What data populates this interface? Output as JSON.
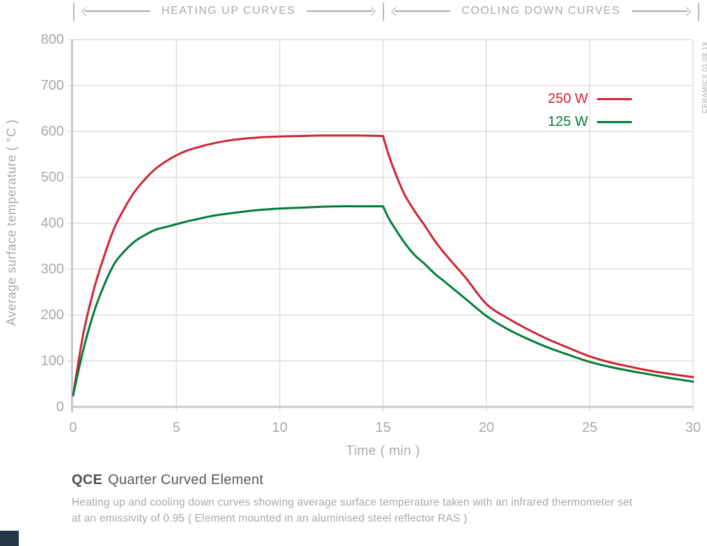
{
  "header": {
    "heating_label": "HEATING UP CURVES",
    "cooling_label": "COOLING DOWN CURVES"
  },
  "watermark": "CERAMICX 01.08.19",
  "legend": [
    {
      "label": "250 W",
      "color": "#cf2533"
    },
    {
      "label": "125 W",
      "color": "#007d37"
    }
  ],
  "colors": {
    "red_series": "#cf2533",
    "green_series": "#007d37",
    "grid": "#dedede",
    "axis": "#c8c9ca",
    "tick_text": "#a7a9ac",
    "corner_mark": "#253746"
  },
  "chart_data": {
    "type": "line",
    "title": "QCE Quarter Curved Element — heating up and cooling down curves",
    "xlabel": "Time ( min )",
    "ylabel": "Average surface temperature ( °C )",
    "xlim": [
      0,
      30
    ],
    "ylim": [
      0,
      800
    ],
    "xticks": [
      0,
      5,
      10,
      15,
      20,
      25,
      30
    ],
    "yticks": [
      0,
      100,
      200,
      300,
      400,
      500,
      600,
      700,
      800
    ],
    "grid": true,
    "legend_position": "upper right inside",
    "annotations": [
      "HEATING UP CURVES (0–15 min)",
      "COOLING DOWN CURVES (15–30 min)"
    ],
    "series": [
      {
        "name": "250 W",
        "color": "#cf2533",
        "heat": [
          [
            0,
            25
          ],
          [
            0.5,
            160
          ],
          [
            1,
            255
          ],
          [
            1.5,
            328
          ],
          [
            2,
            390
          ],
          [
            2.5,
            434
          ],
          [
            3,
            470
          ],
          [
            3.5,
            497
          ],
          [
            4,
            519
          ],
          [
            4.5,
            535
          ],
          [
            5,
            548
          ],
          [
            5.5,
            558
          ],
          [
            6,
            565
          ],
          [
            6.5,
            571
          ],
          [
            7,
            576
          ],
          [
            7.5,
            580
          ],
          [
            8,
            583
          ],
          [
            9,
            587
          ],
          [
            10,
            589
          ],
          [
            11,
            590
          ],
          [
            12,
            591
          ],
          [
            13,
            591
          ],
          [
            14,
            591
          ],
          [
            15,
            590
          ]
        ],
        "cool": [
          [
            15,
            590
          ],
          [
            15.25,
            552
          ],
          [
            15.5,
            520
          ],
          [
            16,
            466
          ],
          [
            16.5,
            428
          ],
          [
            17,
            396
          ],
          [
            17.5,
            362
          ],
          [
            18,
            333
          ],
          [
            19,
            281
          ],
          [
            20,
            224
          ],
          [
            21,
            194
          ],
          [
            22,
            169
          ],
          [
            23,
            147
          ],
          [
            24,
            128
          ],
          [
            25,
            110
          ],
          [
            26,
            97
          ],
          [
            27,
            87
          ],
          [
            28,
            78
          ],
          [
            29,
            71
          ],
          [
            30,
            65
          ]
        ]
      },
      {
        "name": "125 W",
        "color": "#007d37",
        "heat": [
          [
            0,
            25
          ],
          [
            0.5,
            125
          ],
          [
            1,
            205
          ],
          [
            1.5,
            265
          ],
          [
            2,
            312
          ],
          [
            2.5,
            340
          ],
          [
            3,
            361
          ],
          [
            3.5,
            375
          ],
          [
            4,
            386
          ],
          [
            4.5,
            392
          ],
          [
            5,
            398
          ],
          [
            5.5,
            404
          ],
          [
            6,
            409
          ],
          [
            6.5,
            414
          ],
          [
            7,
            418
          ],
          [
            7.5,
            421
          ],
          [
            8,
            424
          ],
          [
            9,
            429
          ],
          [
            10,
            432
          ],
          [
            11,
            434
          ],
          [
            12,
            436
          ],
          [
            13,
            437
          ],
          [
            14,
            437
          ],
          [
            15,
            437
          ]
        ],
        "cool": [
          [
            15,
            437
          ],
          [
            15.25,
            413
          ],
          [
            15.5,
            394
          ],
          [
            16,
            360
          ],
          [
            16.5,
            332
          ],
          [
            17,
            312
          ],
          [
            17.5,
            290
          ],
          [
            18,
            272
          ],
          [
            19,
            235
          ],
          [
            20,
            198
          ],
          [
            21,
            170
          ],
          [
            22,
            148
          ],
          [
            23,
            129
          ],
          [
            24,
            113
          ],
          [
            25,
            98
          ],
          [
            26,
            87
          ],
          [
            27,
            78
          ],
          [
            28,
            70
          ],
          [
            29,
            62
          ],
          [
            30,
            55
          ]
        ]
      }
    ]
  },
  "footer": {
    "code": "QCE",
    "title": "Quarter Curved Element",
    "description": [
      "Heating up and cooling down curves showing average surface temperature taken with an infrared thermometer set",
      "at an emissivity of 0.95  ( Element mounted in an aluminised steel reflector RAS )"
    ]
  }
}
